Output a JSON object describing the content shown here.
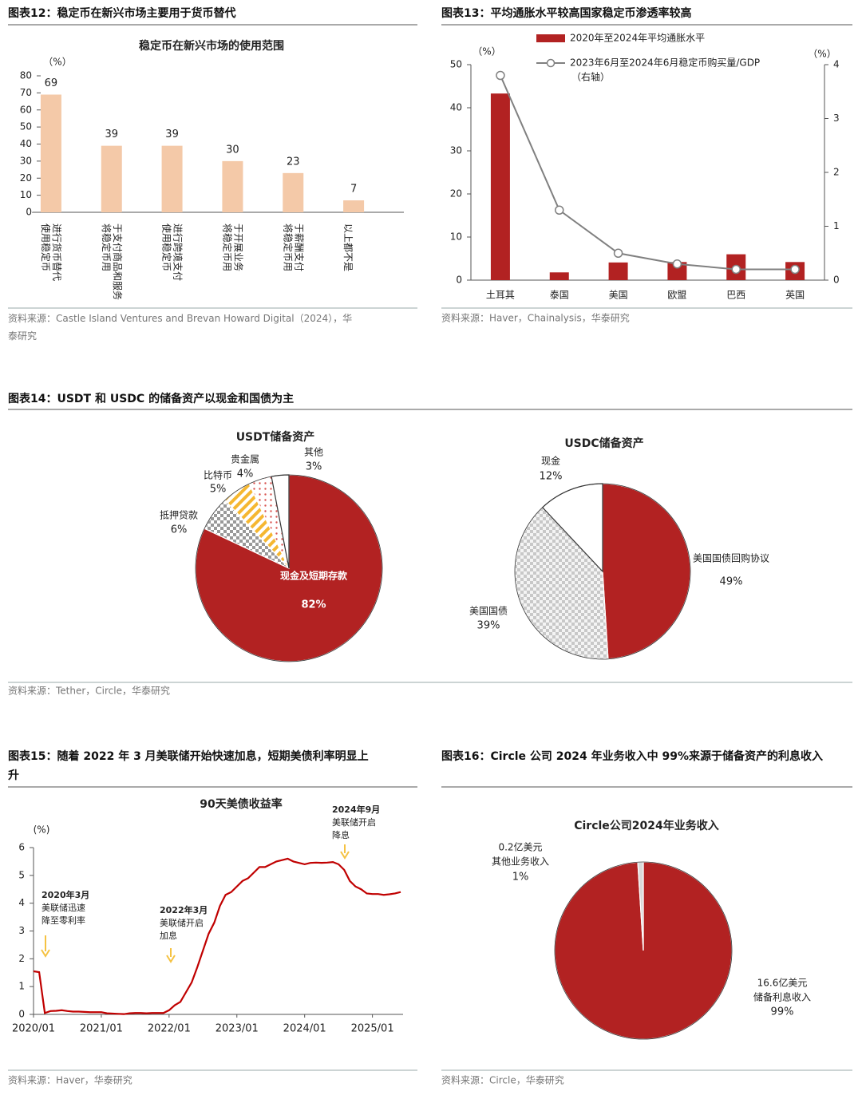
{
  "chart_data": [
    {
      "type": "bar",
      "header": "图表12：稳定币在新兴市场主要用于货币替代",
      "title": "稳定币在新兴市场的使用范围",
      "y_unit": "（%）",
      "categories": [
        "使用稳定币进行货币替代",
        "将稳定币用于支付商品和服务",
        "使用稳定币进行跨境支付",
        "将稳定币用于开展业务",
        "将稳定币用于薪酬支付",
        "以上都不是"
      ],
      "values": [
        69,
        39,
        39,
        30,
        23,
        7
      ],
      "color": "#f4c9a8",
      "ylim": [
        0,
        80
      ],
      "yticks": [
        0,
        10,
        20,
        30,
        40,
        50,
        60,
        70,
        80
      ],
      "source": "资料来源：Castle Island Ventures and Brevan Howard Digital（2024），华泰研究"
    },
    {
      "type": "combo",
      "header": "图表13：平均通胀水平较高国家稳定币渗透率较高",
      "y_unit": "（%）",
      "y2_unit": "（%）",
      "categories": [
        "土耳其",
        "泰国",
        "美国",
        "欧盟",
        "巴西",
        "英国"
      ],
      "series": [
        {
          "name": "2020年至2024年平均通胀水平",
          "color": "#b22222",
          "kind": "bar",
          "values": [
            43.3,
            1.8,
            4.1,
            4.2,
            6.0,
            4.2
          ]
        },
        {
          "name": "2023年6月至2024年6月稳定币购买量/GDP",
          "legend_note": "（右轴）",
          "color": "#808080",
          "kind": "line",
          "axis": "y2",
          "values": [
            3.8,
            1.3,
            0.5,
            0.3,
            0.2,
            0.2
          ]
        }
      ],
      "ylim": [
        0,
        50
      ],
      "yticks": [
        0,
        10,
        20,
        30,
        40,
        50
      ],
      "y2lim": [
        0,
        4
      ],
      "y2ticks": [
        0,
        1,
        2,
        3,
        4
      ],
      "source": "资料来源：Haver，Chainalysis，华泰研究"
    },
    {
      "type": "pie",
      "header": "图表14：USDT 和 USDC 的储备资产以现金和国债为主",
      "title": "USDT储备资产",
      "categories": [
        "现金及短期存款",
        "抵押贷款",
        "比特币",
        "贵金属",
        "其他"
      ],
      "values": [
        82,
        6,
        5,
        4,
        3
      ],
      "value_labels": [
        "82%",
        "6%",
        "5%",
        "4%",
        "3%"
      ],
      "colors": [
        "#b22222",
        "#888888",
        "#f5b731",
        "#d9534f",
        "#ffffff"
      ],
      "patterns": [
        "solid",
        "checker",
        "stripes",
        "dots",
        "solid"
      ],
      "source": "资料来源：Tether，Circle，华泰研究"
    },
    {
      "type": "pie",
      "title": "USDC储备资产",
      "categories": [
        "美国国债回购协议",
        "美国国债",
        "现金"
      ],
      "values": [
        49,
        39,
        12
      ],
      "value_labels": [
        "49%",
        "39%",
        "12%"
      ],
      "colors": [
        "#b22222",
        "#bbbbbb",
        "#ffffff"
      ],
      "patterns": [
        "solid",
        "checker-light",
        "solid"
      ]
    },
    {
      "type": "line",
      "header": "图表15：随着 2022 年 3 月美联储开始快速加息，短期美债利率明显上升",
      "title": "90天美债收益率",
      "y_unit": "(%)",
      "color": "#c00000",
      "x": [
        "2020/01",
        "2020/02",
        "2020/03",
        "2020/04",
        "2020/05",
        "2020/06",
        "2020/07",
        "2020/08",
        "2020/09",
        "2020/10",
        "2020/11",
        "2020/12",
        "2021/01",
        "2021/02",
        "2021/03",
        "2021/04",
        "2021/05",
        "2021/06",
        "2021/07",
        "2021/08",
        "2021/09",
        "2021/10",
        "2021/11",
        "2021/12",
        "2022/01",
        "2022/02",
        "2022/03",
        "2022/04",
        "2022/05",
        "2022/06",
        "2022/07",
        "2022/08",
        "2022/09",
        "2022/10",
        "2022/11",
        "2022/12",
        "2023/01",
        "2023/02",
        "2023/03",
        "2023/04",
        "2023/05",
        "2023/06",
        "2023/07",
        "2023/08",
        "2023/09",
        "2023/10",
        "2023/11",
        "2023/12",
        "2024/01",
        "2024/02",
        "2024/03",
        "2024/04",
        "2024/05",
        "2024/06",
        "2024/07",
        "2024/08",
        "2024/09",
        "2024/10",
        "2024/11",
        "2024/12",
        "2025/01",
        "2025/02",
        "2025/03",
        "2025/04",
        "2025/05",
        "2025/06"
      ],
      "values": [
        1.55,
        1.52,
        0.05,
        0.12,
        0.13,
        0.15,
        0.12,
        0.1,
        0.1,
        0.09,
        0.08,
        0.08,
        0.08,
        0.04,
        0.03,
        0.02,
        0.01,
        0.04,
        0.05,
        0.05,
        0.04,
        0.05,
        0.05,
        0.05,
        0.15,
        0.33,
        0.45,
        0.8,
        1.15,
        1.7,
        2.3,
        2.9,
        3.3,
        3.9,
        4.3,
        4.4,
        4.6,
        4.8,
        4.9,
        5.1,
        5.3,
        5.3,
        5.4,
        5.5,
        5.55,
        5.6,
        5.5,
        5.45,
        5.4,
        5.45,
        5.46,
        5.45,
        5.46,
        5.48,
        5.4,
        5.2,
        4.8,
        4.6,
        4.5,
        4.35,
        4.33,
        4.33,
        4.3,
        4.32,
        4.35,
        4.4
      ],
      "ylim": [
        0,
        6
      ],
      "yticks": [
        0,
        1,
        2,
        3,
        4,
        5,
        6
      ],
      "xticks": [
        "2020/01",
        "2021/01",
        "2022/01",
        "2023/01",
        "2024/01",
        "2025/01"
      ],
      "annotations": [
        {
          "x": "2020/03",
          "title": "2020年3月",
          "text": "美联储迅速降至零利率"
        },
        {
          "x": "2022/03",
          "title": "2022年3月",
          "text": "美联储开启加息"
        },
        {
          "x": "2024/09",
          "title": "2024年9月",
          "text": "美联储开启降息"
        }
      ],
      "source": "资料来源：Haver，华泰研究"
    },
    {
      "type": "pie",
      "header": "图表16：Circle 公司 2024 年业务收入中 99%来源于储备资产的利息收入",
      "title": "Circle公司2024年业务收入",
      "categories": [
        "储备利息收入",
        "其他业务收入"
      ],
      "amounts": [
        "16.6亿美元",
        "0.2亿美元"
      ],
      "values": [
        99,
        1
      ],
      "value_labels": [
        "99%",
        "1%"
      ],
      "colors": [
        "#b22222",
        "#d9d9d9"
      ],
      "patterns": [
        "solid",
        "solid"
      ],
      "source": "资料来源：Circle，华泰研究"
    }
  ]
}
